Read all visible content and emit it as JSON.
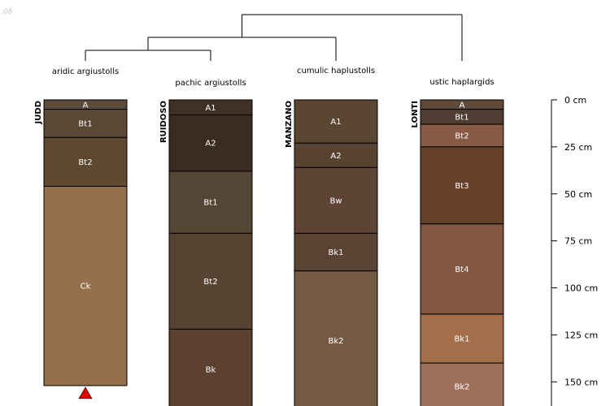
{
  "corner_text": ".08",
  "dendrogram": {
    "merge_order": [
      [
        0,
        1
      ],
      [
        "01",
        2
      ],
      [
        "012",
        3
      ]
    ]
  },
  "profiles": [
    {
      "site": "JUDD",
      "taxon": "aridic argiustolls",
      "marker": "below-bottom",
      "marker_color": "#e00000",
      "horizons": [
        {
          "name": "A",
          "top": 0,
          "bottom": 5,
          "color": "#5c4a3a"
        },
        {
          "name": "Bt1",
          "top": 5,
          "bottom": 20,
          "color": "#594836"
        },
        {
          "name": "Bt2",
          "top": 20,
          "bottom": 46,
          "color": "#5e482f"
        },
        {
          "name": "Ck",
          "top": 46,
          "bottom": 152,
          "color": "#94704e"
        }
      ]
    },
    {
      "site": "RUIDOSO",
      "taxon": "pachic argiustolls",
      "horizons": [
        {
          "name": "A1",
          "top": 0,
          "bottom": 8,
          "color": "#3f3124"
        },
        {
          "name": "A2",
          "top": 8,
          "bottom": 38,
          "color": "#3a2c20"
        },
        {
          "name": "Bt1",
          "top": 38,
          "bottom": 71,
          "color": "#554534"
        },
        {
          "name": "Bt2",
          "top": 71,
          "bottom": 122,
          "color": "#564332"
        },
        {
          "name": "Bk",
          "top": 122,
          "bottom": 165,
          "color": "#5d4130"
        }
      ]
    },
    {
      "site": "MANZANO",
      "taxon": "cumulic haplustolls",
      "horizons": [
        {
          "name": "A1",
          "top": 0,
          "bottom": 23,
          "color": "#5b4631"
        },
        {
          "name": "A2",
          "top": 23,
          "bottom": 36,
          "color": "#574330"
        },
        {
          "name": "Bw",
          "top": 36,
          "bottom": 71,
          "color": "#5d4434"
        },
        {
          "name": "Bk1",
          "top": 71,
          "bottom": 91,
          "color": "#5b4333"
        },
        {
          "name": "Bk2",
          "top": 91,
          "bottom": 165,
          "color": "#735a40"
        }
      ]
    },
    {
      "site": "LONTI",
      "taxon": "ustic haplargids",
      "horizons": [
        {
          "name": "A",
          "top": 0,
          "bottom": 5,
          "color": "#5f4a3a"
        },
        {
          "name": "Bt1",
          "top": 5,
          "bottom": 13,
          "color": "#4e3d30"
        },
        {
          "name": "Bt2",
          "top": 13,
          "bottom": 25,
          "color": "#865a45"
        },
        {
          "name": "Bt3",
          "top": 25,
          "bottom": 66,
          "color": "#65412a"
        },
        {
          "name": "Bt4",
          "top": 66,
          "bottom": 114,
          "color": "#825840"
        },
        {
          "name": "Bk1",
          "top": 114,
          "bottom": 140,
          "color": "#a36f4b"
        },
        {
          "name": "Bk2",
          "top": 140,
          "bottom": 165,
          "color": "#9e715b"
        }
      ]
    }
  ],
  "depth_axis": {
    "unit": "cm",
    "ticks": [
      {
        "value": 0,
        "label": "0 cm"
      },
      {
        "value": 25,
        "label": "25 cm"
      },
      {
        "value": 50,
        "label": "50 cm"
      },
      {
        "value": 75,
        "label": "75 cm"
      },
      {
        "value": 100,
        "label": "100 cm"
      },
      {
        "value": 125,
        "label": "125 cm"
      },
      {
        "value": 150,
        "label": "150 cm"
      }
    ]
  }
}
